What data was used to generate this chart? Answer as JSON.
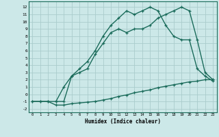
{
  "xlabel": "Humidex (Indice chaleur)",
  "bg_color": "#cce8e8",
  "grid_color": "#aacccc",
  "line_color": "#1a6b5a",
  "xlim": [
    -0.5,
    23.5
  ],
  "ylim": [
    -2.5,
    12.8
  ],
  "xticks": [
    0,
    1,
    2,
    3,
    4,
    5,
    6,
    7,
    8,
    9,
    10,
    11,
    12,
    13,
    14,
    15,
    16,
    17,
    18,
    19,
    20,
    21,
    22,
    23
  ],
  "yticks": [
    -2,
    -1,
    0,
    1,
    2,
    3,
    4,
    5,
    6,
    7,
    8,
    9,
    10,
    11,
    12
  ],
  "curve_bottom_x": [
    0,
    1,
    2,
    3,
    4,
    5,
    6,
    7,
    8,
    9,
    10,
    11,
    12,
    13,
    14,
    15,
    16,
    17,
    18,
    19,
    20,
    21,
    22,
    23
  ],
  "curve_bottom_y": [
    -1,
    -1,
    -1,
    -1.5,
    -1.5,
    -1.3,
    -1.2,
    -1.1,
    -1.0,
    -0.8,
    -0.6,
    -0.3,
    -0.1,
    0.2,
    0.4,
    0.6,
    0.9,
    1.1,
    1.3,
    1.5,
    1.7,
    1.8,
    2.0,
    2.0
  ],
  "curve_mid_x": [
    3,
    4,
    5,
    6,
    7,
    8,
    9,
    10,
    11,
    12,
    13,
    14,
    15,
    16,
    17,
    18,
    19,
    20,
    21,
    22,
    23
  ],
  "curve_mid_y": [
    -1,
    -1,
    2.5,
    3.0,
    3.5,
    5.5,
    7.0,
    8.5,
    9.0,
    8.5,
    9.0,
    9.0,
    9.5,
    10.5,
    11.0,
    11.5,
    12.0,
    11.5,
    7.5,
    3.0,
    2.0
  ],
  "curve_top_x": [
    0,
    1,
    2,
    3,
    4,
    5,
    6,
    7,
    8,
    9,
    10,
    11,
    12,
    13,
    14,
    15,
    16,
    17,
    18,
    19,
    20,
    21,
    22,
    23
  ],
  "curve_top_y": [
    -1,
    -1,
    -1,
    -1,
    1.0,
    2.5,
    3.5,
    4.5,
    6.0,
    8.0,
    9.5,
    10.5,
    11.5,
    11.0,
    11.5,
    12.0,
    11.5,
    9.5,
    8.0,
    7.5,
    7.5,
    3.5,
    2.5,
    1.8
  ]
}
